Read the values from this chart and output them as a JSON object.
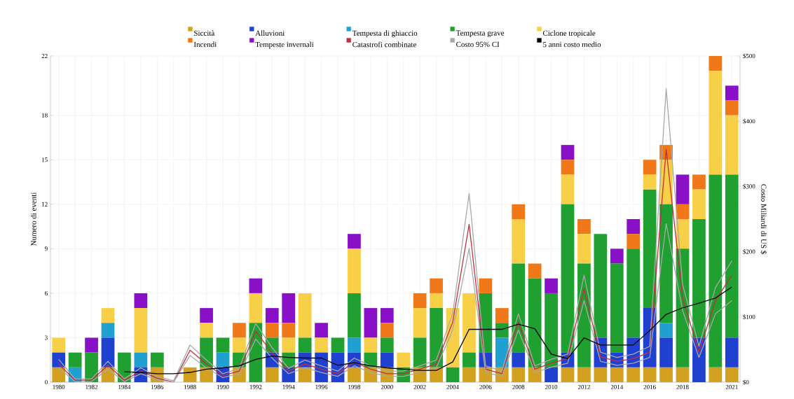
{
  "chart_data": {
    "type": "bar",
    "stacked": true,
    "ylabel": "Numero di eventi",
    "y2label": "Costo Miliardi di US $",
    "grid": true,
    "legend": "top",
    "categories": [
      "1980",
      null,
      "1982",
      null,
      "1984",
      null,
      "1986",
      null,
      "1988",
      null,
      "1990",
      null,
      "1992",
      null,
      "1994",
      null,
      "1996",
      null,
      "1998",
      null,
      "2000",
      null,
      "2002",
      null,
      "2004",
      null,
      "2006",
      null,
      "2008",
      null,
      "2010",
      null,
      "2012",
      null,
      "2014",
      null,
      "2016",
      null,
      "2018",
      null,
      null,
      "2021"
    ],
    "ylim": [
      0,
      22
    ],
    "yticks": [
      0,
      3,
      6,
      9,
      12,
      15,
      18,
      22
    ],
    "y2lim": [
      0,
      500
    ],
    "y2ticks": [
      {
        "value": 0,
        "label": "$0"
      },
      {
        "value": 100,
        "label": "$100"
      },
      {
        "value": 200,
        "label": "$200"
      },
      {
        "value": 300,
        "label": "$300"
      },
      {
        "value": 400,
        "label": "$400"
      },
      {
        "value": 500,
        "label": "$500"
      }
    ],
    "series": [
      {
        "name": "Siccità",
        "color": "#d4a020",
        "values": [
          1,
          0,
          0,
          1,
          0,
          0,
          1,
          0,
          1,
          1,
          0,
          1,
          0,
          1,
          0,
          1,
          0,
          0,
          1,
          1,
          1,
          0,
          1,
          1,
          0,
          1,
          1,
          1,
          1,
          1,
          0,
          1,
          1,
          1,
          1,
          1,
          1,
          1,
          1,
          0,
          1,
          1
        ]
      },
      {
        "name": "Alluvioni",
        "color": "#2040d0",
        "values": [
          1,
          0,
          0,
          2,
          0,
          1,
          0,
          0,
          0,
          0,
          1,
          0,
          0,
          1,
          1,
          1,
          2,
          2,
          1,
          0,
          1,
          0,
          0,
          0,
          0,
          0,
          1,
          0,
          1,
          0,
          1,
          1,
          0,
          2,
          1,
          2,
          4,
          2,
          0,
          3,
          0,
          2
        ]
      },
      {
        "name": "Tempesta di ghiaccio",
        "color": "#20a0d0",
        "values": [
          0,
          1,
          0,
          1,
          0,
          1,
          0,
          0,
          0,
          0,
          1,
          0,
          0,
          0,
          0,
          0,
          0,
          0,
          1,
          0,
          0,
          0,
          0,
          0,
          0,
          0,
          0,
          2,
          0,
          0,
          0,
          0,
          0,
          0,
          0,
          0,
          0,
          1,
          0,
          0,
          0,
          0
        ]
      },
      {
        "name": "Tempesta grave",
        "color": "#20a030",
        "values": [
          0,
          1,
          2,
          0,
          2,
          0,
          1,
          0,
          0,
          2,
          1,
          1,
          4,
          1,
          1,
          1,
          0,
          1,
          3,
          1,
          1,
          1,
          2,
          4,
          1,
          1,
          4,
          1,
          6,
          6,
          5,
          10,
          7,
          7,
          6,
          6,
          8,
          8,
          8,
          8,
          13,
          11
        ]
      },
      {
        "name": "Ciclone tropicale",
        "color": "#f8d048",
        "values": [
          1,
          0,
          0,
          1,
          0,
          3,
          0,
          0,
          0,
          1,
          0,
          1,
          2,
          0,
          1,
          3,
          1,
          0,
          3,
          1,
          0,
          1,
          2,
          1,
          4,
          4,
          0,
          0,
          3,
          0,
          0,
          2,
          2,
          0,
          0,
          0,
          1,
          3,
          2,
          2,
          7,
          4
        ]
      },
      {
        "name": "Incendi",
        "color": "#f07818",
        "values": [
          0,
          0,
          0,
          0,
          0,
          0,
          0,
          0,
          0,
          0,
          0,
          1,
          0,
          1,
          1,
          0,
          0,
          0,
          0,
          0,
          1,
          0,
          1,
          1,
          0,
          0,
          1,
          1,
          1,
          1,
          0,
          1,
          1,
          0,
          0,
          1,
          1,
          1,
          1,
          1,
          1,
          1
        ]
      },
      {
        "name": "Tempeste invernali",
        "color": "#8a10c8",
        "values": [
          0,
          0,
          1,
          0,
          0,
          1,
          0,
          0,
          0,
          1,
          0,
          0,
          1,
          1,
          2,
          0,
          1,
          0,
          1,
          2,
          1,
          0,
          0,
          0,
          0,
          0,
          0,
          0,
          0,
          0,
          1,
          1,
          0,
          0,
          1,
          1,
          0,
          0,
          2,
          0,
          0,
          1
        ]
      },
      {
        "name": "Catastrofi combinate",
        "type": "line",
        "axis": "y2",
        "color": "#c03040",
        "values": [
          28,
          3,
          3,
          26,
          3,
          17,
          6,
          0,
          49,
          28,
          10,
          17,
          78,
          45,
          17,
          28,
          20,
          13,
          31,
          20,
          13,
          13,
          20,
          28,
          92,
          242,
          20,
          13,
          92,
          20,
          29,
          36,
          143,
          39,
          32,
          36,
          46,
          357,
          129,
          46,
          125,
          164
        ]
      },
      {
        "name": "Costo 95% CI",
        "type": "line",
        "axis": "y2",
        "color": "#a8a8a8",
        "values": [
          35,
          5,
          5,
          32,
          5,
          22,
          9,
          2,
          57,
          34,
          13,
          21,
          90,
          53,
          21,
          34,
          25,
          17,
          37,
          25,
          17,
          17,
          25,
          34,
          105,
          289,
          25,
          17,
          105,
          25,
          35,
          43,
          164,
          46,
          38,
          43,
          55,
          450,
          150,
          55,
          145,
          186
        ]
      },
      {
        "type": "line",
        "axis": "y2",
        "color": "#a8a8a8",
        "values": [
          22,
          1,
          1,
          20,
          1,
          13,
          4,
          0,
          41,
          22,
          7,
          13,
          66,
          37,
          13,
          22,
          15,
          9,
          25,
          15,
          9,
          9,
          15,
          22,
          80,
          205,
          15,
          9,
          80,
          15,
          23,
          29,
          125,
          32,
          26,
          29,
          38,
          243,
          110,
          38,
          105,
          125
        ]
      },
      {
        "name": "5 anni costo medio",
        "type": "line",
        "axis": "y2",
        "color": "#000000",
        "values": [
          null,
          null,
          null,
          null,
          16,
          15,
          13,
          13,
          15,
          20,
          22,
          25,
          35,
          40,
          38,
          37,
          37,
          26,
          30,
          25,
          22,
          20,
          18,
          18,
          31,
          81,
          81,
          81,
          89,
          82,
          43,
          36,
          68,
          57,
          57,
          57,
          79,
          104,
          114,
          121,
          129,
          146
        ]
      }
    ]
  }
}
